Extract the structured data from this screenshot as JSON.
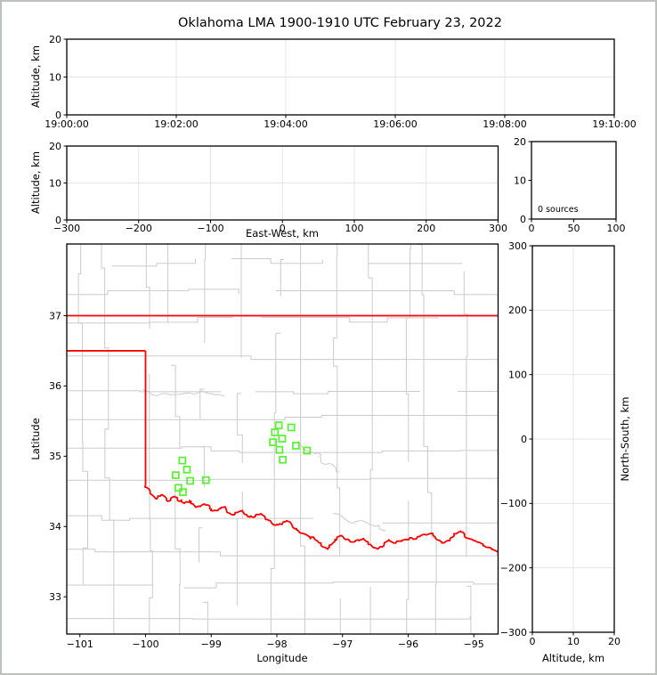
{
  "title": "Oklahoma LMA 1900-1910 UTC February 23, 2022",
  "colors": {
    "station_marker": "#55f42e",
    "state_border": "#ff0000",
    "county_line": "#cbcbcb",
    "grid_line": "#e4e4e4",
    "axis": "#000000",
    "figure_border": "#bdc1bd",
    "background": "#ffffff"
  },
  "panels": {
    "time_height": {
      "ylabel": "Altitude, km",
      "ylim": [
        0,
        20
      ],
      "ytick_labels": [
        "0",
        "10",
        "20"
      ],
      "yticks": [
        0,
        10,
        20
      ],
      "xtick_labels": [
        "19:00:00",
        "19:02:00",
        "19:04:00",
        "19:06:00",
        "19:08:00",
        "19:10:00"
      ]
    },
    "ew_height": {
      "ylabel": "Altitude, km",
      "xlabel": "East-West, km",
      "ylim": [
        0,
        20
      ],
      "ytick_labels": [
        "0",
        "10",
        "20"
      ],
      "yticks": [
        0,
        10,
        20
      ],
      "xlim": [
        -300,
        300
      ],
      "xtick_labels": [
        "−300",
        "−200",
        "−100",
        "0",
        "100",
        "200",
        "300"
      ],
      "xticks": [
        -300,
        -200,
        -100,
        0,
        100,
        200,
        300
      ]
    },
    "histogram": {
      "annotation": "0 sources",
      "xtick_labels": [
        "0",
        "50",
        "100"
      ],
      "xticks": [
        0,
        50,
        100
      ],
      "ytick_labels": [
        "0",
        "10",
        "20"
      ],
      "yticks": [
        0,
        10,
        20
      ]
    },
    "map": {
      "xlabel": "Longitude",
      "ylabel": "Latitude",
      "xtick_labels": [
        "−101",
        "−100",
        "−99",
        "−98",
        "−97",
        "−96",
        "−95"
      ],
      "xticks": [
        -101,
        -100,
        -99,
        -98,
        -97,
        -96,
        -95
      ],
      "ytick_labels": [
        "33",
        "34",
        "35",
        "36",
        "37"
      ],
      "yticks": [
        33,
        34,
        35,
        36,
        37
      ],
      "lon_range": [
        -101.2,
        -94.63
      ],
      "lat_range": [
        32.47,
        38.02
      ]
    },
    "ns_height": {
      "xlabel": "Altitude, km",
      "ylabel_right": "North-South, km",
      "xlim": [
        0,
        20
      ],
      "xtick_labels": [
        "0",
        "10",
        "20"
      ],
      "xticks": [
        0,
        10,
        20
      ],
      "ylim": [
        -300,
        300
      ],
      "ytick_labels": [
        "300",
        "200",
        "100",
        "0",
        "−100",
        "−200",
        "−300"
      ],
      "yticks": [
        300,
        200,
        100,
        0,
        -100,
        -200,
        -300
      ]
    }
  },
  "chart_data": {
    "type": "scatter",
    "title": "Oklahoma LMA 1900-1910 UTC February 23, 2022",
    "source_count": 0,
    "source_count_label": "0 sources",
    "map_extent": {
      "lon": [
        -101.2,
        -94.63
      ],
      "lat": [
        32.47,
        38.02
      ]
    },
    "series": [
      {
        "name": "lma_station_locations",
        "marker": "open-square",
        "color": "#55f42e",
        "points_lon_lat": [
          [
            -97.97,
            35.44
          ],
          [
            -97.78,
            35.41
          ],
          [
            -98.03,
            35.34
          ],
          [
            -97.92,
            35.25
          ],
          [
            -98.06,
            35.2
          ],
          [
            -97.71,
            35.15
          ],
          [
            -97.96,
            35.09
          ],
          [
            -97.54,
            35.08
          ],
          [
            -97.91,
            34.95
          ],
          [
            -99.44,
            34.94
          ],
          [
            -99.37,
            34.81
          ],
          [
            -99.54,
            34.73
          ],
          [
            -99.32,
            34.65
          ],
          [
            -99.08,
            34.66
          ],
          [
            -99.5,
            34.55
          ],
          [
            -99.43,
            34.49
          ]
        ]
      }
    ],
    "state_border": {
      "name": "oklahoma",
      "color": "#ff0000",
      "kansas_border_lat": 37.0,
      "panhandle_south_lat": 36.5,
      "texas_border_lon": -100.0,
      "red_river_lon_lat": [
        [
          -100.0,
          34.59
        ],
        [
          -99.93,
          34.5
        ],
        [
          -99.89,
          34.44
        ],
        [
          -99.82,
          34.41
        ],
        [
          -99.76,
          34.45
        ],
        [
          -99.7,
          34.42
        ],
        [
          -99.62,
          34.37
        ],
        [
          -99.55,
          34.42
        ],
        [
          -99.47,
          34.36
        ],
        [
          -99.41,
          34.33
        ],
        [
          -99.33,
          34.37
        ],
        [
          -99.26,
          34.3
        ],
        [
          -99.18,
          34.29
        ],
        [
          -99.1,
          34.32
        ],
        [
          -99.02,
          34.25
        ],
        [
          -98.95,
          34.23
        ],
        [
          -98.85,
          34.27
        ],
        [
          -98.77,
          34.24
        ],
        [
          -98.69,
          34.17
        ],
        [
          -98.6,
          34.2
        ],
        [
          -98.52,
          34.21
        ],
        [
          -98.44,
          34.14
        ],
        [
          -98.36,
          34.13
        ],
        [
          -98.27,
          34.17
        ],
        [
          -98.17,
          34.1
        ],
        [
          -98.09,
          34.07
        ],
        [
          -98.0,
          34.03
        ],
        [
          -97.92,
          34.03
        ],
        [
          -97.85,
          34.08
        ],
        [
          -97.77,
          34.02
        ],
        [
          -97.7,
          33.97
        ],
        [
          -97.6,
          33.9
        ],
        [
          -97.52,
          33.86
        ],
        [
          -97.44,
          33.85
        ],
        [
          -97.36,
          33.77
        ],
        [
          -97.3,
          33.71
        ],
        [
          -97.22,
          33.69
        ],
        [
          -97.16,
          33.75
        ],
        [
          -97.09,
          33.81
        ],
        [
          -97.0,
          33.86
        ],
        [
          -96.92,
          33.82
        ],
        [
          -96.84,
          33.78
        ],
        [
          -96.76,
          33.81
        ],
        [
          -96.68,
          33.83
        ],
        [
          -96.61,
          33.76
        ],
        [
          -96.53,
          33.7
        ],
        [
          -96.45,
          33.69
        ],
        [
          -96.36,
          33.77
        ],
        [
          -96.27,
          33.79
        ],
        [
          -96.17,
          33.79
        ],
        [
          -96.06,
          33.81
        ],
        [
          -95.95,
          33.84
        ],
        [
          -95.84,
          33.86
        ],
        [
          -95.72,
          33.88
        ],
        [
          -95.62,
          33.87
        ],
        [
          -95.52,
          33.8
        ],
        [
          -95.42,
          33.79
        ],
        [
          -95.32,
          33.85
        ],
        [
          -95.23,
          33.92
        ],
        [
          -95.14,
          33.89
        ],
        [
          -95.05,
          33.82
        ],
        [
          -94.95,
          33.78
        ],
        [
          -94.86,
          33.73
        ],
        [
          -94.76,
          33.7
        ],
        [
          -94.68,
          33.66
        ],
        [
          -94.6,
          33.6
        ]
      ]
    }
  }
}
